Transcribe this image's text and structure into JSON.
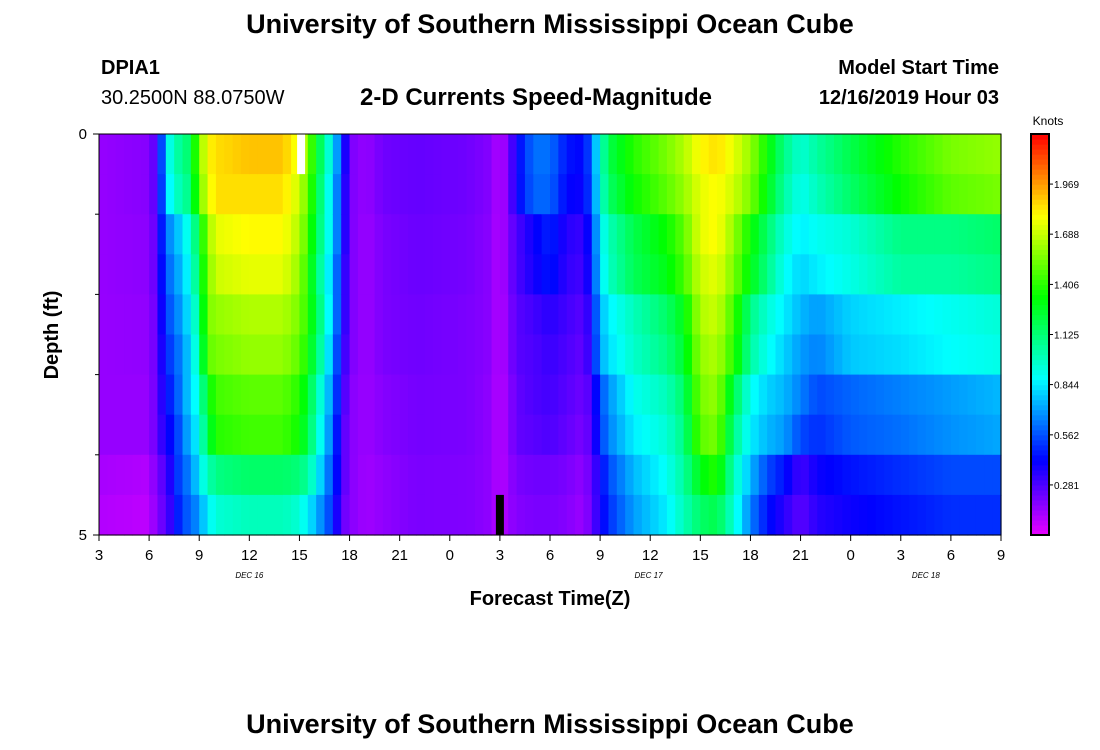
{
  "page": {
    "title": "University of Southern Mississippi Ocean Cube",
    "footer_title": "University of Southern Mississippi Ocean Cube"
  },
  "header": {
    "station_id": "DPIA1",
    "location": "30.2500N 88.0750W",
    "chart_title": "2-D Currents Speed-Magnitude",
    "model_label": "Model Start Time",
    "model_time": "12/16/2019 Hour 03"
  },
  "chart_data": {
    "type": "heatmap",
    "title": "2-D Currents Speed-Magnitude",
    "xlabel": "Forecast Time(Z)",
    "ylabel": "Depth (ft)",
    "x_start_hour": 3,
    "x_end_hour": 57,
    "x_ticks": [
      {
        "hour": 3,
        "label": "3"
      },
      {
        "hour": 6,
        "label": "6"
      },
      {
        "hour": 9,
        "label": "9"
      },
      {
        "hour": 12,
        "label": "12"
      },
      {
        "hour": 15,
        "label": "15"
      },
      {
        "hour": 18,
        "label": "18"
      },
      {
        "hour": 21,
        "label": "21"
      },
      {
        "hour": 24,
        "label": "0"
      },
      {
        "hour": 27,
        "label": "3"
      },
      {
        "hour": 30,
        "label": "6"
      },
      {
        "hour": 33,
        "label": "9"
      },
      {
        "hour": 36,
        "label": "12"
      },
      {
        "hour": 39,
        "label": "15"
      },
      {
        "hour": 42,
        "label": "18"
      },
      {
        "hour": 45,
        "label": "21"
      },
      {
        "hour": 48,
        "label": "0"
      },
      {
        "hour": 51,
        "label": "3"
      },
      {
        "hour": 54,
        "label": "6"
      },
      {
        "hour": 57,
        "label": "9"
      }
    ],
    "day_labels": [
      {
        "hour": 12,
        "label": "DEC 16"
      },
      {
        "hour": 35.9,
        "label": "DEC 17"
      },
      {
        "hour": 52.5,
        "label": "DEC 18"
      }
    ],
    "y_ticks": [
      {
        "depth": 0,
        "label": "0"
      },
      {
        "depth": 5,
        "label": "5"
      }
    ],
    "y_minor_depths": [
      1.0,
      2.0,
      3.0,
      4.0
    ],
    "ylim": [
      0,
      5
    ],
    "depths": [
      0.25,
      0.75,
      1.25,
      1.75,
      2.25,
      2.75,
      3.25,
      3.75,
      4.25,
      4.75
    ],
    "colorbar": {
      "unit": "Knots",
      "min": 0,
      "max": 2.25,
      "ticks": [
        1.969,
        1.688,
        1.406,
        1.125,
        0.844,
        0.562,
        0.281
      ],
      "tick_labels": [
        "1.969",
        "1.688",
        "1.406",
        "1.125",
        "0.844",
        "0.562",
        "0.281"
      ]
    },
    "profiles": [
      {
        "hour": 3,
        "v": [
          0.15,
          0.15,
          0.15,
          0.15,
          0.15,
          0.15,
          0.15,
          0.15,
          0.12,
          0.1
        ]
      },
      {
        "hour": 6,
        "v": [
          0.18,
          0.18,
          0.17,
          0.17,
          0.16,
          0.16,
          0.15,
          0.15,
          0.1,
          0.08
        ]
      },
      {
        "hour": 6.5,
        "v": [
          0.3,
          0.3,
          0.27,
          0.27,
          0.25,
          0.25,
          0.25,
          0.25,
          0.22,
          0.2
        ]
      },
      {
        "hour": 7,
        "v": [
          0.8,
          0.75,
          0.65,
          0.6,
          0.55,
          0.5,
          0.45,
          0.4,
          0.28,
          0.25
        ]
      },
      {
        "hour": 7.5,
        "v": [
          1.05,
          1.0,
          0.7,
          0.65,
          0.6,
          0.55,
          0.5,
          0.45,
          0.45,
          0.4
        ]
      },
      {
        "hour": 8,
        "v": [
          1.05,
          1.0,
          0.85,
          0.8,
          0.75,
          0.7,
          0.7,
          0.65,
          0.6,
          0.55
        ]
      },
      {
        "hour": 8.5,
        "v": [
          1.2,
          1.15,
          0.95,
          0.9,
          0.85,
          0.8,
          0.8,
          0.75,
          0.65,
          0.6
        ]
      },
      {
        "hour": 9,
        "v": [
          1.55,
          1.5,
          1.25,
          1.2,
          1.1,
          1.05,
          0.95,
          0.9,
          0.85,
          0.7
        ]
      },
      {
        "hour": 9.5,
        "v": [
          1.8,
          1.75,
          1.6,
          1.55,
          1.55,
          1.5,
          1.3,
          1.2,
          1.0,
          0.85
        ]
      },
      {
        "hour": 10,
        "v": [
          1.85,
          1.85,
          1.75,
          1.7,
          1.6,
          1.55,
          1.45,
          1.4,
          1.1,
          0.95
        ]
      },
      {
        "hour": 12,
        "v": [
          1.9,
          1.85,
          1.8,
          1.75,
          1.65,
          1.6,
          1.5,
          1.45,
          1.15,
          1.0
        ]
      },
      {
        "hour": 14,
        "v": [
          1.9,
          1.85,
          1.8,
          1.75,
          1.65,
          1.6,
          1.5,
          1.45,
          1.15,
          1.0
        ]
      },
      {
        "hour": 15,
        "v": [
          1.75,
          1.7,
          1.65,
          1.6,
          1.55,
          1.5,
          1.4,
          1.35,
          1.12,
          0.95
        ]
      },
      {
        "hour": 15.5,
        "v": [
          1.55,
          1.5,
          1.45,
          1.4,
          1.4,
          1.35,
          1.25,
          1.2,
          1.05,
          0.85
        ]
      },
      {
        "hour": 16,
        "v": [
          1.3,
          1.25,
          1.2,
          1.15,
          1.2,
          1.15,
          1.05,
          1.0,
          0.9,
          0.75
        ]
      },
      {
        "hour": 16.5,
        "v": [
          1.05,
          1.0,
          1.0,
          0.95,
          1.0,
          0.95,
          0.85,
          0.8,
          0.7,
          0.62
        ]
      },
      {
        "hour": 17,
        "v": [
          0.85,
          0.8,
          0.8,
          0.75,
          0.75,
          0.7,
          0.65,
          0.6,
          0.55,
          0.5
        ]
      },
      {
        "hour": 17.5,
        "v": [
          0.55,
          0.5,
          0.5,
          0.45,
          0.45,
          0.4,
          0.35,
          0.3,
          0.3,
          0.25
        ]
      },
      {
        "hour": 18,
        "v": [
          0.2,
          0.2,
          0.2,
          0.2,
          0.2,
          0.2,
          0.18,
          0.18,
          0.18,
          0.18
        ]
      },
      {
        "hour": 19,
        "v": [
          0.15,
          0.15,
          0.14,
          0.14,
          0.14,
          0.14,
          0.14,
          0.14,
          0.13,
          0.13
        ]
      },
      {
        "hour": 20,
        "v": [
          0.22,
          0.22,
          0.2,
          0.2,
          0.2,
          0.2,
          0.18,
          0.18,
          0.16,
          0.16
        ]
      },
      {
        "hour": 22,
        "v": [
          0.24,
          0.24,
          0.23,
          0.23,
          0.22,
          0.22,
          0.21,
          0.21,
          0.2,
          0.2
        ]
      },
      {
        "hour": 25,
        "v": [
          0.22,
          0.22,
          0.21,
          0.21,
          0.2,
          0.2,
          0.2,
          0.2,
          0.19,
          0.19
        ]
      },
      {
        "hour": 26.5,
        "v": [
          0.18,
          0.18,
          0.17,
          0.17,
          0.17,
          0.17,
          0.16,
          0.16,
          0.16,
          0.16
        ]
      },
      {
        "hour": 27,
        "v": [
          0.08,
          0.08,
          0.08,
          0.08,
          0.08,
          0.08,
          0.08,
          0.08,
          0.08,
          0.08
        ]
      },
      {
        "hour": 27.5,
        "v": [
          0.2,
          0.2,
          0.2,
          0.2,
          0.18,
          0.18,
          0.16,
          0.16,
          0.15,
          0.15
        ]
      },
      {
        "hour": 28,
        "v": [
          0.4,
          0.4,
          0.28,
          0.28,
          0.26,
          0.26,
          0.24,
          0.24,
          0.2,
          0.18
        ]
      },
      {
        "hour": 29,
        "v": [
          0.62,
          0.6,
          0.4,
          0.38,
          0.3,
          0.28,
          0.28,
          0.26,
          0.22,
          0.2
        ]
      },
      {
        "hour": 30,
        "v": [
          0.62,
          0.6,
          0.48,
          0.46,
          0.35,
          0.32,
          0.3,
          0.28,
          0.22,
          0.2
        ]
      },
      {
        "hour": 31,
        "v": [
          0.45,
          0.42,
          0.35,
          0.33,
          0.3,
          0.28,
          0.26,
          0.24,
          0.2,
          0.18
        ]
      },
      {
        "hour": 32,
        "v": [
          0.42,
          0.4,
          0.32,
          0.3,
          0.26,
          0.24,
          0.22,
          0.2,
          0.16,
          0.14
        ]
      },
      {
        "hour": 32.5,
        "v": [
          0.6,
          0.58,
          0.5,
          0.48,
          0.4,
          0.38,
          0.3,
          0.28,
          0.25,
          0.24
        ]
      },
      {
        "hour": 33,
        "v": [
          0.95,
          0.92,
          0.85,
          0.82,
          0.75,
          0.72,
          0.55,
          0.52,
          0.4,
          0.38
        ]
      },
      {
        "hour": 33.5,
        "v": [
          1.2,
          1.15,
          1.0,
          0.98,
          0.85,
          0.82,
          0.68,
          0.65,
          0.55,
          0.5
        ]
      },
      {
        "hour": 35,
        "v": [
          1.4,
          1.35,
          1.2,
          1.18,
          1.0,
          0.97,
          0.9,
          0.85,
          0.75,
          0.7
        ]
      },
      {
        "hour": 37,
        "v": [
          1.55,
          1.5,
          1.35,
          1.3,
          1.15,
          1.1,
          1.0,
          0.95,
          0.9,
          0.85
        ]
      },
      {
        "hour": 38,
        "v": [
          1.65,
          1.6,
          1.5,
          1.45,
          1.3,
          1.25,
          1.15,
          1.1,
          1.05,
          1.0
        ]
      },
      {
        "hour": 39,
        "v": [
          1.8,
          1.75,
          1.75,
          1.7,
          1.65,
          1.6,
          1.55,
          1.5,
          1.3,
          1.15
        ]
      },
      {
        "hour": 40,
        "v": [
          1.85,
          1.8,
          1.8,
          1.75,
          1.7,
          1.65,
          1.6,
          1.55,
          1.4,
          1.2
        ]
      },
      {
        "hour": 41,
        "v": [
          1.75,
          1.7,
          1.6,
          1.55,
          1.45,
          1.4,
          1.2,
          1.1,
          1.0,
          0.95
        ]
      },
      {
        "hour": 42,
        "v": [
          1.6,
          1.55,
          1.35,
          1.3,
          1.1,
          1.05,
          0.9,
          0.85,
          0.75,
          0.65
        ]
      },
      {
        "hour": 43,
        "v": [
          1.35,
          1.3,
          1.15,
          1.1,
          0.95,
          0.9,
          0.8,
          0.75,
          0.55,
          0.45
        ]
      },
      {
        "hour": 44,
        "v": [
          1.1,
          1.05,
          0.95,
          0.9,
          0.85,
          0.8,
          0.75,
          0.7,
          0.45,
          0.35
        ]
      },
      {
        "hour": 45,
        "v": [
          0.95,
          0.9,
          0.85,
          0.8,
          0.75,
          0.7,
          0.65,
          0.55,
          0.3,
          0.25
        ]
      },
      {
        "hour": 46,
        "v": [
          1.05,
          1.0,
          0.9,
          0.85,
          0.7,
          0.65,
          0.55,
          0.5,
          0.4,
          0.35
        ]
      },
      {
        "hour": 48,
        "v": [
          1.2,
          1.15,
          0.95,
          0.92,
          0.8,
          0.78,
          0.6,
          0.58,
          0.45,
          0.4
        ]
      },
      {
        "hour": 51,
        "v": [
          1.4,
          1.35,
          1.1,
          1.05,
          0.85,
          0.82,
          0.65,
          0.62,
          0.5,
          0.45
        ]
      },
      {
        "hour": 54,
        "v": [
          1.55,
          1.5,
          1.1,
          1.05,
          0.9,
          0.88,
          0.7,
          0.68,
          0.55,
          0.5
        ]
      },
      {
        "hour": 57,
        "v": [
          1.6,
          1.55,
          1.15,
          1.1,
          0.95,
          0.92,
          0.75,
          0.72,
          0.55,
          0.5
        ]
      }
    ],
    "markers": [
      {
        "hour": 15.1,
        "depth_from": 0,
        "depth_to": 0.5,
        "color": "#ffffff"
      },
      {
        "hour": 27.0,
        "depth_from": 4.5,
        "depth_to": 5,
        "color": "#000000"
      }
    ]
  }
}
